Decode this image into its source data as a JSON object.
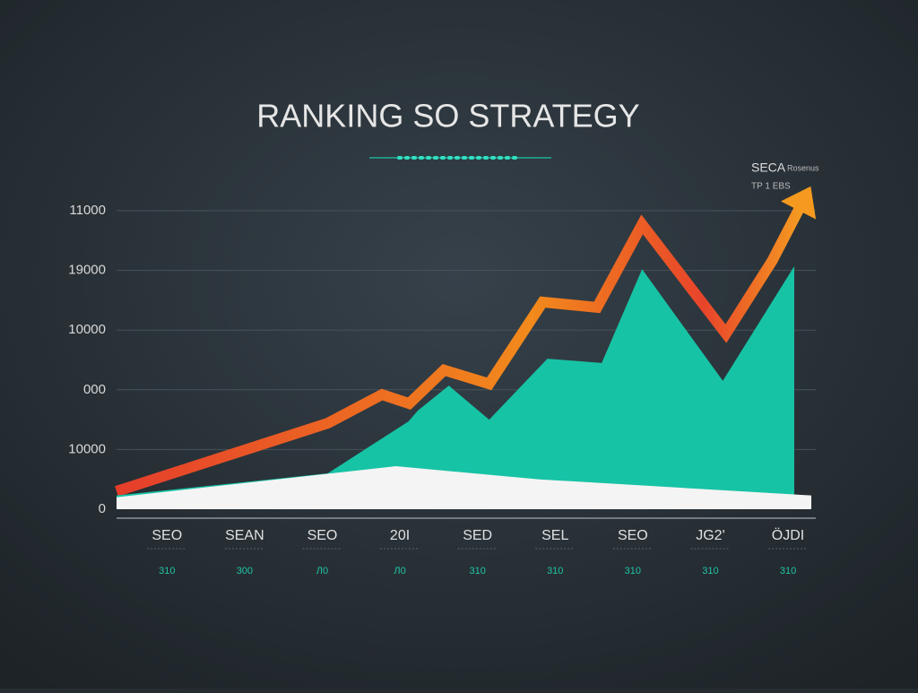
{
  "chart_data": {
    "type": "line",
    "title": "RANKING SO STRATEGY",
    "annotations": [
      "SECA",
      "Rosenus",
      "TP 1 EBS"
    ],
    "xlim": [
      -0.65,
      8.3
    ],
    "xticks": [
      {
        "value": 0,
        "label": "SEO"
      },
      {
        "value": 1,
        "label": "SEAN"
      },
      {
        "value": 2,
        "label": "SEO"
      },
      {
        "value": 3,
        "label": "20I"
      },
      {
        "value": 4,
        "label": "SED"
      },
      {
        "value": 5,
        "label": "SEL"
      },
      {
        "value": 6,
        "label": "SEO"
      },
      {
        "value": 7,
        "label": "JG2'"
      },
      {
        "value": 8,
        "label": "ÖJDI"
      }
    ],
    "sublabels": [
      "310",
      "300",
      "Л0",
      "Л0",
      "310",
      "310",
      "310",
      "310",
      "310"
    ],
    "ylim": [
      0,
      5.5
    ],
    "yticks": [
      {
        "value": 0,
        "label": "0"
      },
      {
        "value": 1,
        "label": "10000"
      },
      {
        "value": 2,
        "label": "000"
      },
      {
        "value": 3,
        "label": "10000"
      },
      {
        "value": 4,
        "label": "19000"
      },
      {
        "value": 5,
        "label": "11000"
      }
    ],
    "grid": true,
    "series": [
      {
        "kind": "line",
        "color": "#f0761e",
        "x": [
          -0.65,
          2.07,
          2.77,
          3.12,
          3.57,
          4.15,
          4.84,
          5.54,
          6.12,
          7.2,
          7.8,
          8.25
        ],
        "values": [
          0.3,
          1.44,
          1.92,
          1.77,
          2.33,
          2.1,
          3.47,
          3.38,
          4.77,
          2.94,
          4.17,
          5.3
        ]
      },
      {
        "kind": "area",
        "color": "#17c3a5",
        "x": [
          -0.65,
          2.07,
          3.11,
          3.23,
          3.63,
          4.15,
          4.9,
          5.6,
          6.12,
          7.16,
          8.08
        ],
        "values": [
          0.23,
          0.6,
          1.47,
          1.65,
          2.07,
          1.5,
          2.52,
          2.45,
          4.02,
          2.15,
          4.07
        ]
      },
      {
        "kind": "area",
        "color": "#f4f4f4",
        "x": [
          -0.65,
          2.95,
          4.8,
          8.3
        ],
        "values": [
          0.2,
          0.72,
          0.5,
          0.23
        ]
      }
    ]
  }
}
